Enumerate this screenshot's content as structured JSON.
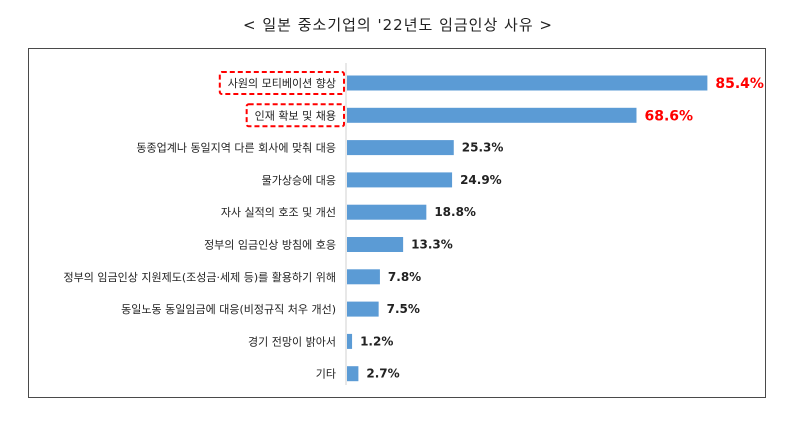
{
  "chart_data": {
    "type": "bar",
    "orientation": "horizontal",
    "title": "< 일본 중소기업의 '22년도 임금인상 사유 >",
    "categories": [
      "사원의 모티베이션 향상",
      "인재 확보 및 채용",
      "동종업계나 동일지역 다른 회사에 맞춰 대응",
      "물가상승에 대응",
      "자사 실적의 호조 및 개선",
      "정부의 임금인상 방침에 호응",
      "정부의 임금인상 지원제도(조성금·세제 등)를 활용하기 위해",
      "동일노동 동일임금에 대응(비정규직 처우 개선)",
      "경기 전망이 밝아서",
      "기타"
    ],
    "values": [
      85.4,
      68.6,
      25.3,
      24.9,
      18.8,
      13.3,
      7.8,
      7.5,
      1.2,
      2.7
    ],
    "value_labels": [
      "85.4%",
      "68.6%",
      "25.3%",
      "24.9%",
      "18.8%",
      "13.3%",
      "7.8%",
      "7.5%",
      "1.2%",
      "2.7%"
    ],
    "highlighted": [
      0,
      1
    ],
    "xlim": [
      0,
      100
    ],
    "grid": false,
    "bar_color": "#5b9bd5",
    "highlight_color": "#ff0000",
    "label_color": "#222222"
  }
}
